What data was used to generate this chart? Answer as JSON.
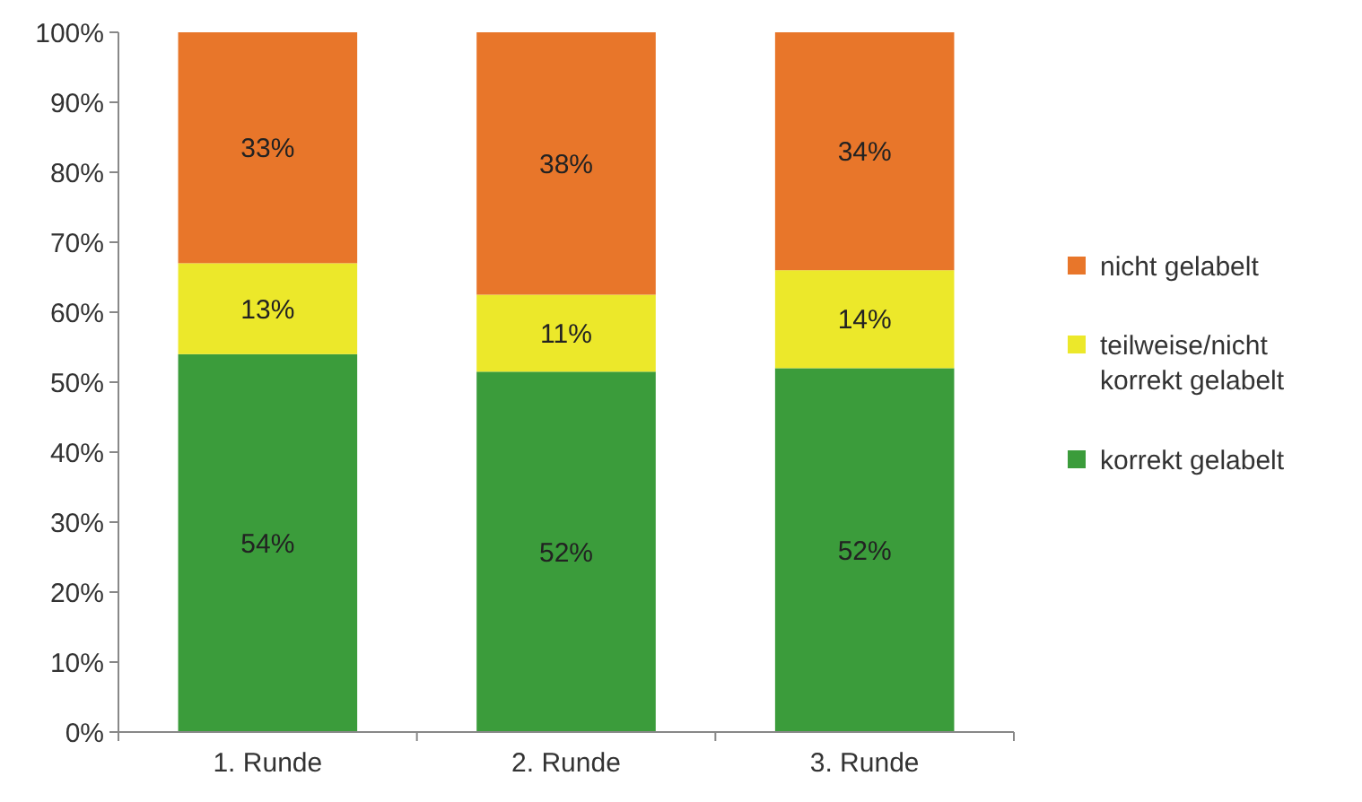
{
  "chart_data": {
    "type": "bar",
    "stacked": true,
    "categories": [
      "1. Runde",
      "2. Runde",
      "3. Runde"
    ],
    "series": [
      {
        "name": "korrekt gelabelt",
        "color": "#3b9c3b",
        "values": [
          54,
          51.5,
          52
        ],
        "value_labels": [
          "54%",
          "52%",
          "52%"
        ]
      },
      {
        "name": "teilweise/nicht korrekt gelabelt",
        "color": "#ece82a",
        "values": [
          13,
          11,
          14
        ],
        "value_labels": [
          "13%",
          "11%",
          "14%"
        ]
      },
      {
        "name": "nicht gelabelt",
        "color": "#e8762a",
        "values": [
          33,
          37.5,
          34
        ],
        "value_labels": [
          "33%",
          "38%",
          "34%"
        ]
      }
    ],
    "ylim": [
      0,
      100
    ],
    "yticks": [
      {
        "value": 0,
        "label": "0%"
      },
      {
        "value": 10,
        "label": "10%"
      },
      {
        "value": 20,
        "label": "20%"
      },
      {
        "value": 30,
        "label": "30%"
      },
      {
        "value": 40,
        "label": "40%"
      },
      {
        "value": 50,
        "label": "50%"
      },
      {
        "value": 60,
        "label": "60%"
      },
      {
        "value": 70,
        "label": "70%"
      },
      {
        "value": 80,
        "label": "80%"
      },
      {
        "value": 90,
        "label": "90%"
      },
      {
        "value": 100,
        "label": "100%"
      }
    ],
    "grid": false,
    "legend": "right"
  }
}
